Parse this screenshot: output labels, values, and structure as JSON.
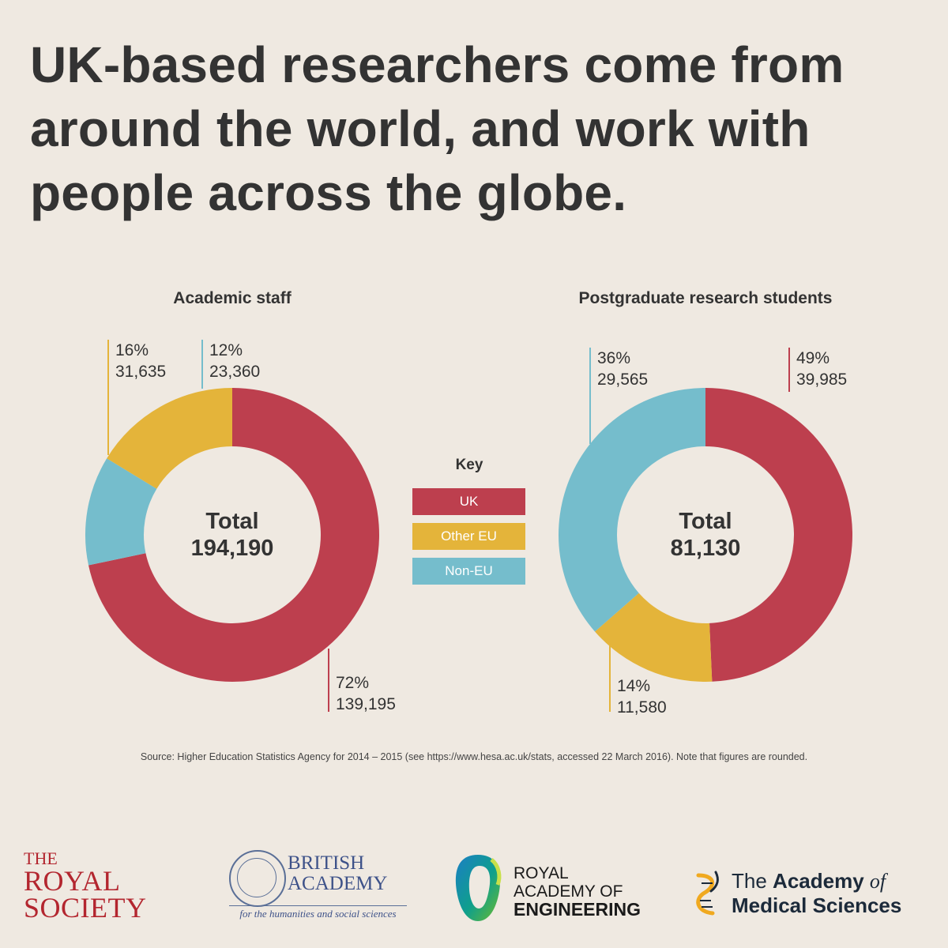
{
  "headline": {
    "line1": "UK-based researchers come from",
    "line2": "around the world, and work with",
    "line3": "people across the globe."
  },
  "colors": {
    "uk": "#bd3f4e",
    "other_eu": "#e4b43a",
    "non_eu": "#75bdcc",
    "text": "#333333",
    "background": "#efe9e1"
  },
  "chart_data": [
    {
      "type": "pie",
      "title": "Academic staff",
      "center_label": "Total",
      "total": 194190,
      "total_text": "194,190",
      "slices": [
        {
          "name": "UK",
          "value": 139195,
          "percent": 72,
          "percent_text": "72%",
          "count_text": "139,195",
          "color": "#bd3f4e"
        },
        {
          "name": "Other EU",
          "value": 31635,
          "percent": 16,
          "percent_text": "16%",
          "count_text": "31,635",
          "color": "#e4b43a"
        },
        {
          "name": "Non-EU",
          "value": 23360,
          "percent": 12,
          "percent_text": "12%",
          "count_text": "23,360",
          "color": "#75bdcc"
        }
      ]
    },
    {
      "type": "pie",
      "title": "Postgraduate research students",
      "center_label": "Total",
      "total": 81130,
      "total_text": "81,130",
      "slices": [
        {
          "name": "UK",
          "value": 39985,
          "percent": 49,
          "percent_text": "49%",
          "count_text": "39,985",
          "color": "#bd3f4e"
        },
        {
          "name": "Other EU",
          "value": 11580,
          "percent": 14,
          "percent_text": "14%",
          "count_text": "11,580",
          "color": "#e4b43a"
        },
        {
          "name": "Non-EU",
          "value": 29565,
          "percent": 36,
          "percent_text": "36%",
          "count_text": "29,565",
          "color": "#75bdcc"
        }
      ]
    }
  ],
  "key": {
    "title": "Key",
    "items": [
      {
        "label": "UK",
        "color": "#bd3f4e"
      },
      {
        "label": "Other EU",
        "color": "#e4b43a"
      },
      {
        "label": "Non-EU",
        "color": "#75bdcc"
      }
    ]
  },
  "source": "Source: Higher Education Statistics Agency for 2014 – 2015 (see https://www.hesa.ac.uk/stats, accessed 22 March 2016). Note that figures are rounded.",
  "logos": {
    "royal_society": {
      "line1": "THE",
      "line2": "ROYAL",
      "line3": "SOCIETY",
      "color": "#b3262f"
    },
    "british_academy": {
      "line1": "BRITISH",
      "line2": "ACADEMY",
      "tagline": "for the humanities and social sciences",
      "color": "#3e5289"
    },
    "royal_academy_engineering": {
      "line1": "ROYAL",
      "line2": "ACADEMY OF",
      "line3": "ENGINEERING"
    },
    "academy_medical_sciences": {
      "prefix": "The",
      "line1": "Academy",
      "italic": "of",
      "line2": "Medical Sciences"
    }
  }
}
